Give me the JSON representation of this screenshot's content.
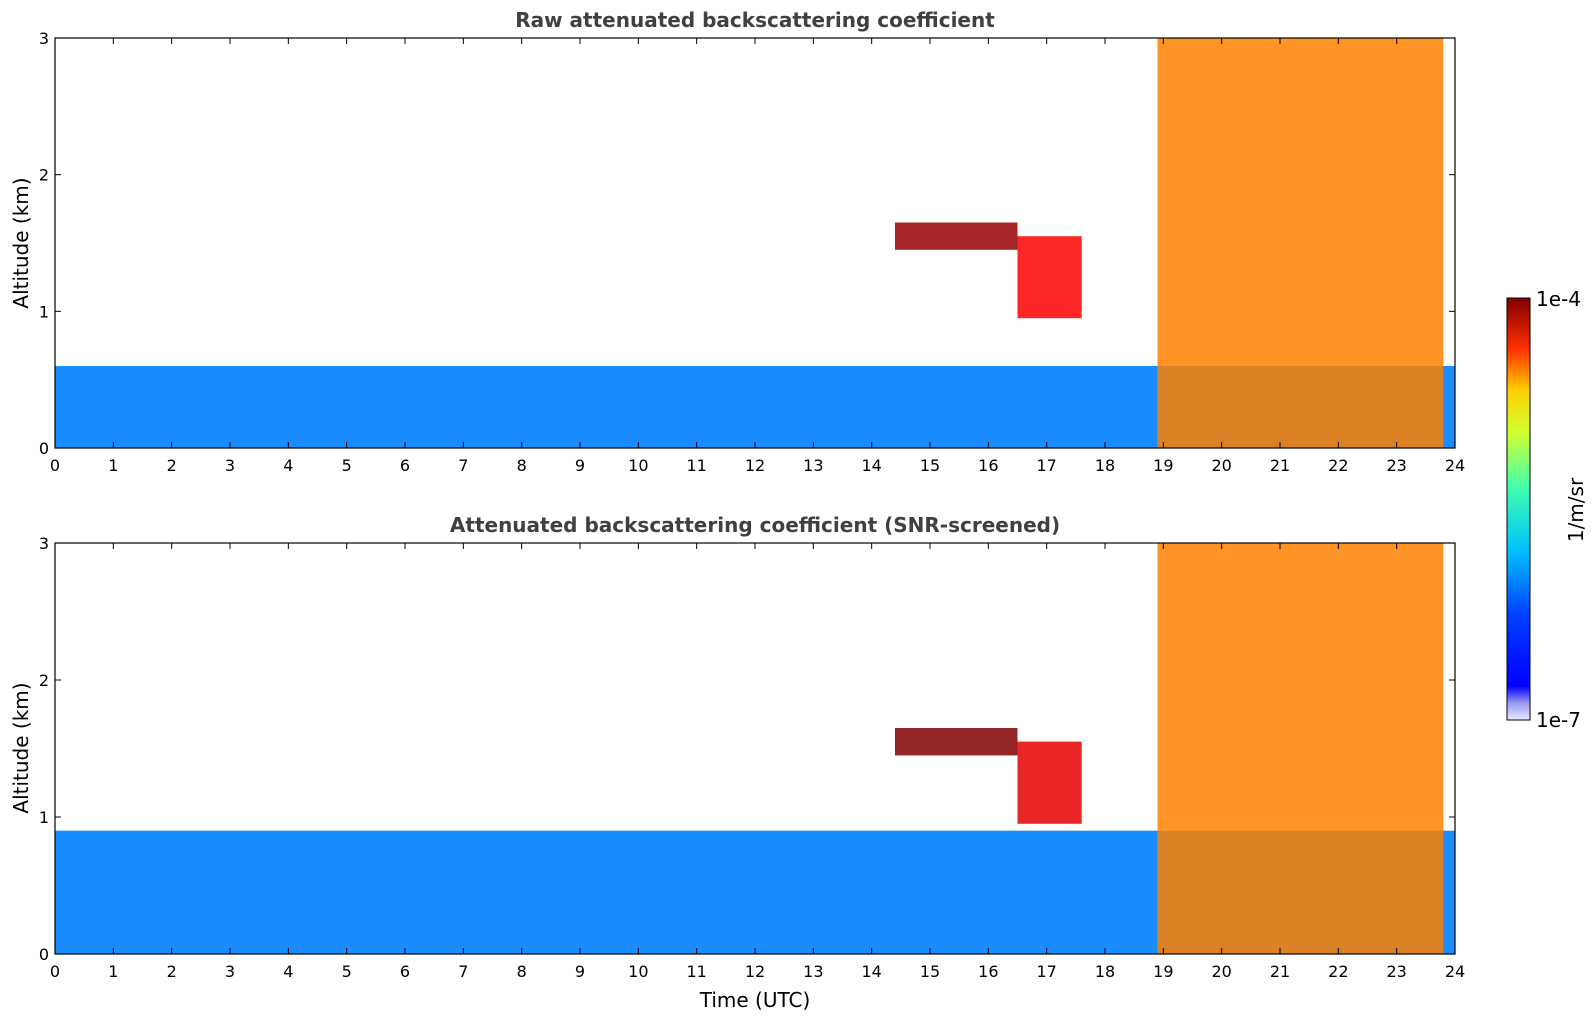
{
  "chart_data": [
    {
      "type": "heatmap",
      "title": "Raw attenuated backscattering coefficient",
      "xlabel": "",
      "ylabel": "Altitude (km)",
      "xlim": [
        0,
        24
      ],
      "ylim": [
        0,
        3
      ],
      "xticks": [
        "0",
        "1",
        "2",
        "3",
        "4",
        "5",
        "6",
        "7",
        "8",
        "9",
        "10",
        "11",
        "12",
        "13",
        "14",
        "15",
        "16",
        "17",
        "18",
        "19",
        "20",
        "21",
        "22",
        "23",
        "24"
      ],
      "yticks": [
        "0",
        "1",
        "2",
        "3"
      ],
      "grid": false,
      "features": [
        {
          "desc": "boundary layer aerosol",
          "x": [
            0,
            24
          ],
          "y": [
            0,
            0.6
          ],
          "level": 0.25
        },
        {
          "desc": "mid-level cloud layer",
          "x": [
            14.4,
            16.5
          ],
          "y": [
            1.45,
            1.65
          ],
          "level": 0.98
        },
        {
          "desc": "broken cloud",
          "x": [
            16.5,
            17.6
          ],
          "y": [
            0.95,
            1.55
          ],
          "level": 0.88
        },
        {
          "desc": "precipitation streaks",
          "x": [
            18.9,
            23.8
          ],
          "y": [
            0,
            3.0
          ],
          "level": 0.75
        }
      ]
    },
    {
      "type": "heatmap",
      "title": "Attenuated backscattering coefficient (SNR-screened)",
      "xlabel": "Time (UTC)",
      "ylabel": "Altitude (km)",
      "xlim": [
        0,
        24
      ],
      "ylim": [
        0,
        3
      ],
      "xticks": [
        "0",
        "1",
        "2",
        "3",
        "4",
        "5",
        "6",
        "7",
        "8",
        "9",
        "10",
        "11",
        "12",
        "13",
        "14",
        "15",
        "16",
        "17",
        "18",
        "19",
        "20",
        "21",
        "22",
        "23",
        "24"
      ],
      "yticks": [
        "0",
        "1",
        "2",
        "3"
      ],
      "grid": false,
      "features": [
        {
          "desc": "boundary layer aerosol",
          "x": [
            0,
            24
          ],
          "y": [
            0,
            0.9
          ],
          "level": 0.25
        },
        {
          "desc": "mid-level cloud layer",
          "x": [
            14.4,
            16.5
          ],
          "y": [
            1.45,
            1.65
          ],
          "level": 1.0
        },
        {
          "desc": "broken cloud",
          "x": [
            16.5,
            17.6
          ],
          "y": [
            0.95,
            1.55
          ],
          "level": 0.9
        },
        {
          "desc": "precipitation streaks",
          "x": [
            18.9,
            23.8
          ],
          "y": [
            0,
            3.0
          ],
          "level": 0.75
        }
      ]
    }
  ],
  "colorbar": {
    "label": "1/m/sr",
    "max_label": "1e-4",
    "min_label": "1e-7",
    "colormap": "jet",
    "scale": "log"
  }
}
